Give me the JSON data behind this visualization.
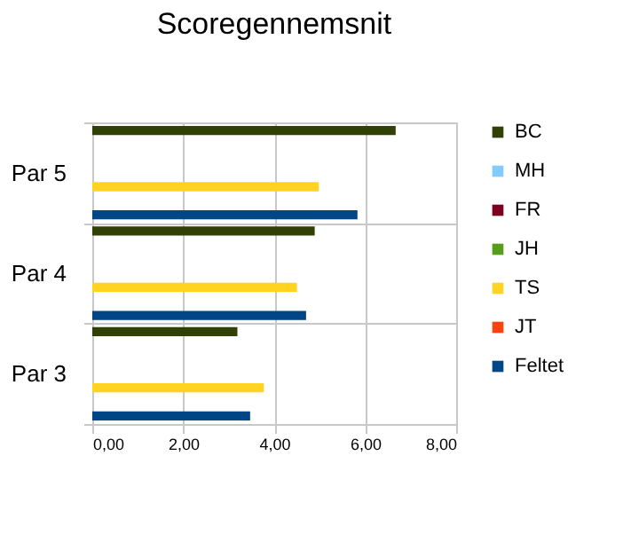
{
  "chart_data": {
    "type": "bar",
    "orientation": "horizontal",
    "title": "Scoregennemsnit",
    "categories": [
      "Par 5",
      "Par 4",
      "Par 3"
    ],
    "series": [
      {
        "name": "BC",
        "color": "#314004",
        "values": [
          6.67,
          4.89,
          3.19
        ]
      },
      {
        "name": "MH",
        "color": "#83caff",
        "values": [
          null,
          null,
          null
        ]
      },
      {
        "name": "FR",
        "color": "#7e0021",
        "values": [
          null,
          null,
          null
        ]
      },
      {
        "name": "JH",
        "color": "#579d1c",
        "values": [
          null,
          null,
          null
        ]
      },
      {
        "name": "TS",
        "color": "#ffd320",
        "values": [
          4.98,
          4.5,
          3.77
        ]
      },
      {
        "name": "JT",
        "color": "#ff420e",
        "values": [
          null,
          null,
          null
        ]
      },
      {
        "name": "Feltet",
        "color": "#004586",
        "values": [
          5.83,
          4.7,
          3.47
        ]
      }
    ],
    "xlim": [
      0,
      8
    ],
    "xticks": [
      {
        "value": 0,
        "label": "0,00"
      },
      {
        "value": 2,
        "label": "2,00"
      },
      {
        "value": 4,
        "label": "4,00"
      },
      {
        "value": 6,
        "label": "6,00"
      },
      {
        "value": 8,
        "label": "8,00"
      }
    ],
    "grid": true,
    "legend": "right"
  }
}
